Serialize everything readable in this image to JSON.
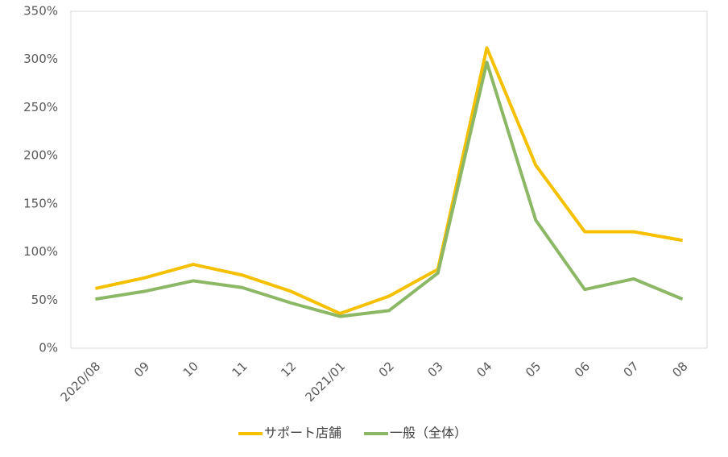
{
  "chart_data": {
    "type": "line",
    "categories": [
      "2020/08",
      "09",
      "10",
      "11",
      "12",
      "2021/01",
      "02",
      "03",
      "04",
      "05",
      "06",
      "07",
      "08"
    ],
    "series": [
      {
        "name": "サポート店舗",
        "color": "#f5c000",
        "values": [
          62,
          73,
          87,
          76,
          59,
          36,
          54,
          82,
          312,
          190,
          121,
          121,
          112
        ]
      },
      {
        "name": "一般（全体）",
        "color": "#8cb866",
        "values": [
          51,
          59,
          70,
          63,
          47,
          33,
          39,
          78,
          297,
          133,
          61,
          72,
          51
        ]
      }
    ],
    "ylim": [
      0,
      350
    ],
    "yticks": [
      {
        "value": 0,
        "label": "0%"
      },
      {
        "value": 50,
        "label": "50%"
      },
      {
        "value": 100,
        "label": "100%"
      },
      {
        "value": 150,
        "label": "150%"
      },
      {
        "value": 200,
        "label": "200%"
      },
      {
        "value": 250,
        "label": "250%"
      },
      {
        "value": 300,
        "label": "300%"
      },
      {
        "value": 350,
        "label": "350%"
      }
    ],
    "grid": false,
    "legend": "bottom"
  }
}
